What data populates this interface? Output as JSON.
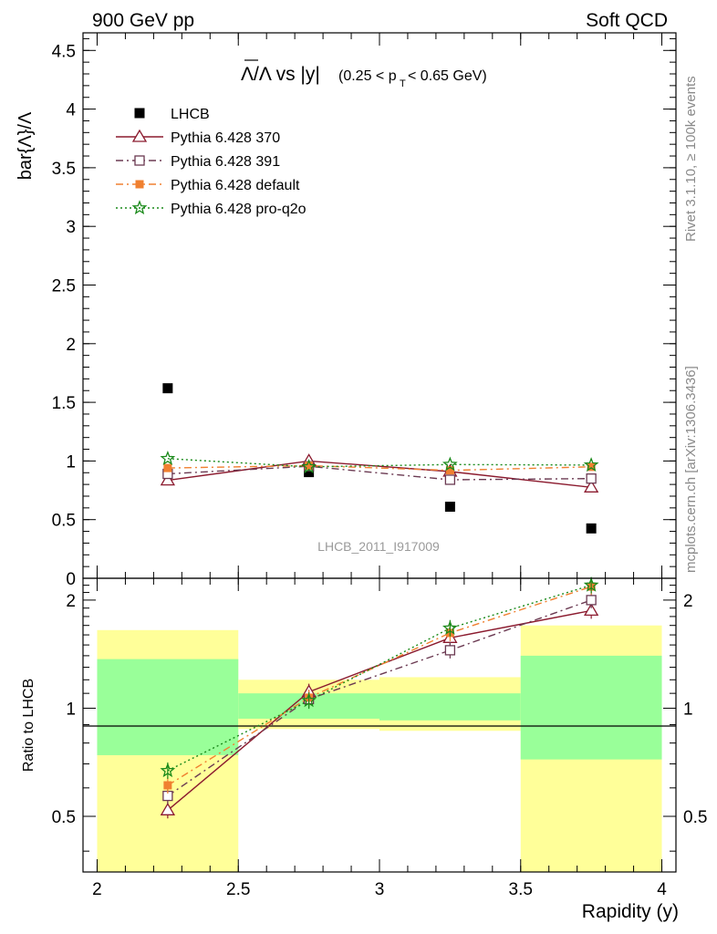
{
  "header": {
    "left": "900 GeV pp",
    "right": "Soft QCD"
  },
  "side_labels": {
    "rivet": "Rivet 3.1.10, ≥ 100k events",
    "mcplots": "mcplots.cern.ch [arXiv:1306.3436]"
  },
  "plot_title": {
    "main": "Λ/Λ vs |y|",
    "cut_open": "(0.25 < p",
    "cut_sub": "T",
    "cut_close": " < 0.65 GeV)"
  },
  "watermark": "LHCB_2011_I917009",
  "chart_data": [
    {
      "type": "scatter",
      "panel": "main",
      "ylabel": "bar{Λ}/Λ",
      "ylim": [
        0,
        4.65
      ],
      "yticks": [
        "0",
        "0.5",
        "1",
        "1.5",
        "2",
        "2.5",
        "3",
        "3.5",
        "4",
        "4.5"
      ],
      "x": [
        2.25,
        2.75,
        3.25,
        3.75
      ],
      "legend_position": "top-left",
      "series": [
        {
          "name": "LHCB",
          "color": "#000000",
          "marker": "square",
          "line": "none",
          "values": [
            1.62,
            0.905,
            0.61,
            0.425
          ]
        },
        {
          "name": "Pythia 6.428 370",
          "color": "#8b1a2e",
          "marker": "triangle-open",
          "line": "solid",
          "values": [
            0.835,
            1.0,
            0.91,
            0.775
          ]
        },
        {
          "name": "Pythia 6.428 391",
          "color": "#6b3a52",
          "marker": "square-open",
          "line": "dashdot",
          "values": [
            0.89,
            0.955,
            0.84,
            0.85
          ]
        },
        {
          "name": "Pythia 6.428 default",
          "color": "#f08030",
          "marker": "square-filled",
          "line": "dashdot",
          "values": [
            0.94,
            0.96,
            0.92,
            0.95
          ]
        },
        {
          "name": "Pythia 6.428 pro-q2o",
          "color": "#1a8a1a",
          "marker": "star-open",
          "line": "dotted",
          "values": [
            1.02,
            0.95,
            0.97,
            0.965
          ]
        }
      ]
    },
    {
      "type": "line",
      "panel": "ratio",
      "ylabel": "Ratio to LHCB",
      "xlabel": "Rapidity (y)",
      "ylim": [
        0.35,
        2.3
      ],
      "xlim": [
        1.95,
        4.05
      ],
      "yticks": [
        "0.5",
        "1",
        "2"
      ],
      "xticks": [
        "2",
        "2.5",
        "3",
        "3.5",
        "4"
      ],
      "x": [
        2.25,
        2.75,
        3.25,
        3.75
      ],
      "bands": [
        {
          "x0": 2.0,
          "x1": 2.5,
          "yellow": [
            0.35,
            1.65
          ],
          "green": [
            0.74,
            1.37
          ]
        },
        {
          "x0": 2.5,
          "x1": 3.0,
          "yellow": [
            0.875,
            1.2
          ],
          "green": [
            0.935,
            1.1
          ]
        },
        {
          "x0": 3.0,
          "x1": 3.5,
          "yellow": [
            0.865,
            1.22
          ],
          "green": [
            0.925,
            1.1
          ]
        },
        {
          "x0": 3.5,
          "x1": 4.0,
          "yellow": [
            0.35,
            1.7
          ],
          "green": [
            0.72,
            1.4
          ]
        }
      ],
      "series": [
        {
          "name": "Pythia 6.428 370",
          "color": "#8b1a2e",
          "marker": "triangle-open",
          "line": "solid",
          "values": [
            0.52,
            1.11,
            1.57,
            1.87
          ]
        },
        {
          "name": "Pythia 6.428 391",
          "color": "#6b3a52",
          "marker": "square-open",
          "line": "dashdot",
          "values": [
            0.57,
            1.06,
            1.45,
            2.0
          ]
        },
        {
          "name": "Pythia 6.428 default",
          "color": "#f08030",
          "marker": "square-filled",
          "line": "dashdot",
          "values": [
            0.61,
            1.07,
            1.62,
            2.18
          ]
        },
        {
          "name": "Pythia 6.428 pro-q2o",
          "color": "#1a8a1a",
          "marker": "star-open",
          "line": "dotted",
          "values": [
            0.67,
            1.05,
            1.67,
            2.2
          ]
        }
      ]
    }
  ]
}
